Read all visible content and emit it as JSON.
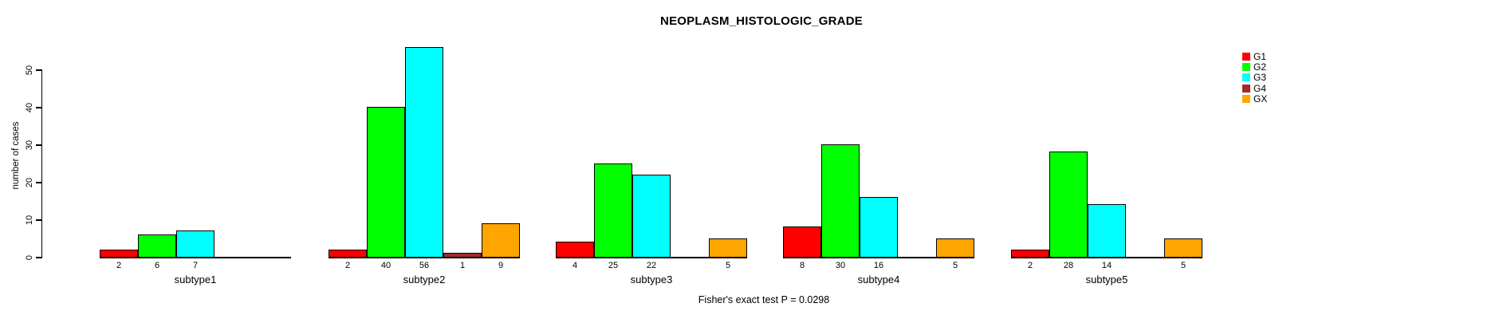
{
  "title": "NEOPLASM_HISTOLOGIC_GRADE",
  "footer": "Fisher's exact test P = 0.0298",
  "y_axis": {
    "label": "number of cases",
    "ticks": [
      0,
      10,
      20,
      30,
      40,
      50
    ]
  },
  "legend": {
    "position": "top-right",
    "items": [
      {
        "label": "G1",
        "color": "#ff0000"
      },
      {
        "label": "G2",
        "color": "#00ff00"
      },
      {
        "label": "G3",
        "color": "#00ffff"
      },
      {
        "label": "G4",
        "color": "#a52a2a"
      },
      {
        "label": "GX",
        "color": "#ffa500"
      }
    ]
  },
  "chart_data": {
    "type": "bar",
    "title": "NEOPLASM_HISTOLOGIC_GRADE",
    "xlabel": "",
    "ylabel": "number of cases",
    "ylim": [
      0,
      56
    ],
    "axis_range": [
      0,
      50
    ],
    "grid": false,
    "legend_position": "top-right",
    "categories": [
      "subtype1",
      "subtype2",
      "subtype3",
      "subtype4",
      "subtype5"
    ],
    "series": [
      {
        "name": "G1",
        "color": "#ff0000",
        "values": [
          2,
          2,
          4,
          8,
          2
        ]
      },
      {
        "name": "G2",
        "color": "#00ff00",
        "values": [
          6,
          40,
          25,
          30,
          28
        ]
      },
      {
        "name": "G3",
        "color": "#00ffff",
        "values": [
          7,
          56,
          22,
          16,
          14
        ]
      },
      {
        "name": "G4",
        "color": "#a52a2a",
        "values": [
          0,
          1,
          0,
          0,
          0
        ]
      },
      {
        "name": "GX",
        "color": "#ffa500",
        "values": [
          0,
          9,
          5,
          5,
          5
        ]
      }
    ],
    "bar_value_labels_shown_only_when_nonzero": true,
    "annotation": "Fisher's exact test P = 0.0298"
  }
}
